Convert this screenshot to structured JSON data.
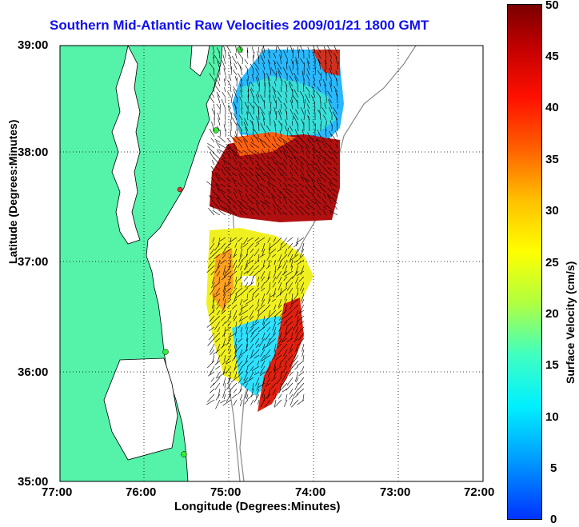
{
  "title": "Southern Mid-Atlantic Raw Velocities 2009/01/21 1800 GMT",
  "axes": {
    "xlabel": "Longitude (Degrees:Minutes)",
    "ylabel": "Latitude (Degrees:Minutes)",
    "xticks": [
      "77:00",
      "76:00",
      "75:00",
      "74:00",
      "73:00",
      "72:00"
    ],
    "yticks": [
      "39:00",
      "38:00",
      "37:00",
      "36:00",
      "35:00"
    ]
  },
  "colorbar": {
    "label": "Surface Velocity (cm/s)",
    "ticks": [
      "50",
      "45",
      "40",
      "35",
      "30",
      "25",
      "20",
      "15",
      "10",
      "5",
      "0"
    ]
  },
  "colors": {
    "land": "#55f2aa",
    "title": "#1010ee",
    "station": "#33ee33",
    "station_alt": "#ee3333"
  }
}
